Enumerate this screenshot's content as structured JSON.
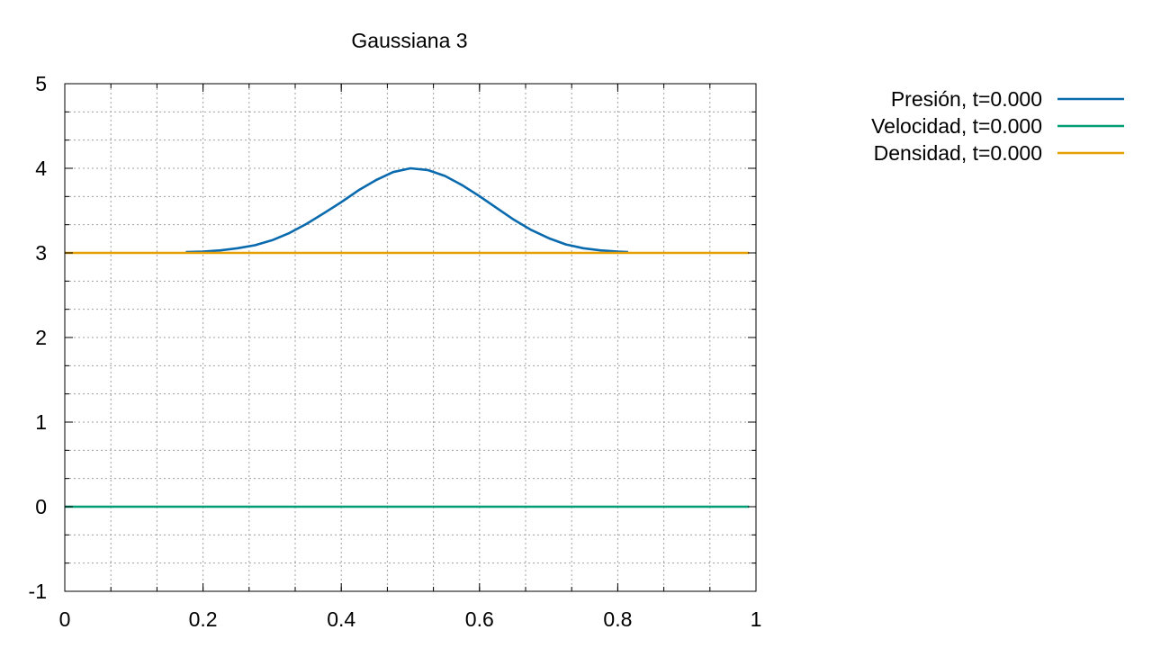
{
  "chart_data": {
    "type": "line",
    "title": "Gaussiana 3",
    "xlabel": "",
    "ylabel": "",
    "xlim": [
      0,
      1
    ],
    "ylim": [
      -1,
      5
    ],
    "x_ticks": [
      0,
      0.2,
      0.4,
      0.6,
      0.8,
      1
    ],
    "x_tick_labels": [
      "0",
      "0.2",
      "0.4",
      "0.6",
      "0.8",
      "1"
    ],
    "x_minor_step": 0.066667,
    "y_ticks": [
      -1,
      0,
      1,
      2,
      3,
      4,
      5
    ],
    "y_tick_labels": [
      "-1",
      "0",
      "1",
      "2",
      "3",
      "4",
      "5"
    ],
    "y_minor_step": 0.333333,
    "grid": true,
    "legend_position": "outside-top-right",
    "series": [
      {
        "name": "Presión, t=0.000",
        "color": "#0a6aae",
        "x": [
          0.175,
          0.2,
          0.225,
          0.25,
          0.275,
          0.3,
          0.325,
          0.35,
          0.375,
          0.4,
          0.425,
          0.45,
          0.475,
          0.5,
          0.525,
          0.55,
          0.575,
          0.6,
          0.625,
          0.65,
          0.675,
          0.7,
          0.725,
          0.75,
          0.775,
          0.8,
          0.815
        ],
        "y": [
          3.01,
          3.015,
          3.03,
          3.055,
          3.09,
          3.15,
          3.235,
          3.345,
          3.47,
          3.6,
          3.74,
          3.86,
          3.955,
          4.0,
          3.98,
          3.91,
          3.8,
          3.67,
          3.53,
          3.39,
          3.27,
          3.175,
          3.1,
          3.055,
          3.03,
          3.015,
          3.01
        ]
      },
      {
        "name": "Velocidad, t=0.000",
        "color": "#009e73",
        "x": [
          0,
          0.99
        ],
        "y": [
          0,
          0
        ]
      },
      {
        "name": "Densidad, t=0.000",
        "color": "#e69f00",
        "x": [
          0,
          0.99
        ],
        "y": [
          3,
          3
        ]
      }
    ]
  }
}
